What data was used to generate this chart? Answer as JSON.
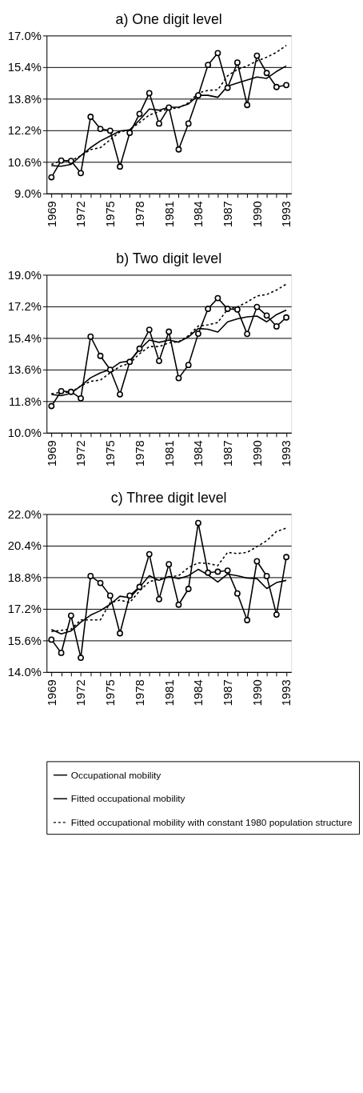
{
  "chart_data": [
    {
      "type": "line",
      "title": "a) One digit level",
      "categories": [
        "1969",
        null,
        null,
        "1972",
        null,
        null,
        "1975",
        null,
        null,
        "1978",
        null,
        null,
        "1981",
        null,
        null,
        "1984",
        null,
        null,
        "1987",
        null,
        null,
        "1990",
        null,
        null,
        "1993"
      ],
      "ylim": [
        9.0,
        17.0
      ],
      "yticks": [
        {
          "value": 9.0,
          "label": "9.0%"
        },
        {
          "value": 10.6,
          "label": "10.6%"
        },
        {
          "value": 12.2,
          "label": "12.2%"
        },
        {
          "value": 13.8,
          "label": "13.8%"
        },
        {
          "value": 15.4,
          "label": "15.4%"
        },
        {
          "value": 17.0,
          "label": "17.0%"
        }
      ],
      "grid": "y",
      "legend": "bottom",
      "series": [
        {
          "name": "Occupational mobility",
          "color": "#000000",
          "marker": "circle",
          "line_style": "solid",
          "values": [
            9.82,
            10.67,
            10.65,
            10.03,
            12.88,
            12.27,
            12.18,
            10.36,
            12.07,
            13.03,
            14.08,
            12.54,
            13.35,
            11.23,
            12.54,
            13.97,
            15.51,
            16.11,
            14.35,
            15.63,
            13.48,
            15.98,
            15.1,
            14.39,
            14.49
          ]
        },
        {
          "name": "Fitted occupational mobility",
          "color": "#000000",
          "marker": "none",
          "line_style": "solid",
          "values": [
            10.41,
            10.38,
            10.47,
            10.91,
            11.32,
            11.66,
            11.91,
            12.16,
            12.22,
            12.72,
            13.28,
            13.22,
            13.37,
            13.37,
            13.53,
            13.97,
            13.97,
            13.87,
            14.43,
            14.59,
            14.75,
            14.9,
            14.83,
            15.18,
            15.46
          ]
        },
        {
          "name": "Fitted occupational mobility with constant 1980 population structure",
          "color": "#000000",
          "marker": "none",
          "line_style": "dotted",
          "values": [
            10.47,
            10.66,
            10.66,
            10.91,
            11.22,
            11.32,
            11.72,
            12.12,
            12.22,
            12.59,
            12.97,
            13.15,
            13.28,
            13.34,
            13.59,
            14.09,
            14.22,
            14.25,
            14.96,
            15.28,
            15.46,
            15.71,
            15.9,
            16.15,
            16.5
          ]
        }
      ]
    },
    {
      "type": "line",
      "title": "b) Two digit level",
      "categories": [
        "1969",
        null,
        null,
        "1972",
        null,
        null,
        "1975",
        null,
        null,
        "1978",
        null,
        null,
        "1981",
        null,
        null,
        "1984",
        null,
        null,
        "1987",
        null,
        null,
        "1990",
        null,
        null,
        "1993"
      ],
      "ylim": [
        10.0,
        19.0
      ],
      "yticks": [
        {
          "value": 10.0,
          "label": "10.0%"
        },
        {
          "value": 11.8,
          "label": "11.8%"
        },
        {
          "value": 13.6,
          "label": "13.6%"
        },
        {
          "value": 15.4,
          "label": "15.4%"
        },
        {
          "value": 17.2,
          "label": "17.2%"
        },
        {
          "value": 19.0,
          "label": "19.0%"
        }
      ],
      "grid": "y",
      "legend": "bottom",
      "series": [
        {
          "name": "Occupational mobility",
          "color": "#000000",
          "marker": "circle",
          "line_style": "solid",
          "values": [
            11.52,
            12.37,
            12.33,
            11.96,
            15.48,
            14.38,
            13.59,
            12.19,
            14.04,
            14.79,
            15.87,
            14.09,
            15.76,
            13.11,
            13.86,
            15.64,
            17.06,
            17.67,
            17.06,
            17.02,
            15.63,
            17.17,
            16.68,
            16.06,
            16.57
          ]
        },
        {
          "name": "Fitted occupational mobility",
          "color": "#000000",
          "marker": "none",
          "line_style": "solid",
          "values": [
            12.18,
            12.11,
            12.25,
            12.66,
            13.13,
            13.41,
            13.61,
            14.0,
            14.09,
            14.74,
            15.28,
            15.15,
            15.28,
            15.16,
            15.46,
            15.94,
            15.9,
            15.74,
            16.32,
            16.49,
            16.6,
            16.65,
            16.32,
            16.73,
            16.99
          ]
        },
        {
          "name": "Fitted occupational mobility with constant 1980 population structure",
          "color": "#000000",
          "marker": "none",
          "line_style": "dotted",
          "values": [
            12.22,
            12.31,
            12.31,
            12.66,
            12.93,
            13.0,
            13.41,
            13.78,
            13.96,
            14.5,
            14.91,
            14.91,
            15.12,
            15.19,
            15.53,
            16.08,
            16.15,
            16.28,
            17.04,
            17.17,
            17.45,
            17.79,
            17.88,
            18.13,
            18.47
          ]
        }
      ]
    },
    {
      "type": "line",
      "title": "c) Three digit level",
      "categories": [
        "1969",
        null,
        null,
        "1972",
        null,
        null,
        "1975",
        null,
        null,
        "1978",
        null,
        null,
        "1981",
        null,
        null,
        "1984",
        null,
        null,
        "1987",
        null,
        null,
        "1990",
        null,
        null,
        "1993"
      ],
      "ylim": [
        14.0,
        22.0
      ],
      "yticks": [
        {
          "value": 14.0,
          "label": "14.0%"
        },
        {
          "value": 15.6,
          "label": "15.6%"
        },
        {
          "value": 17.2,
          "label": "17.2%"
        },
        {
          "value": 18.8,
          "label": "18.8%"
        },
        {
          "value": 20.4,
          "label": "20.4%"
        },
        {
          "value": 22.0,
          "label": "22.0%"
        }
      ],
      "grid": "y",
      "legend": "bottom",
      "series": [
        {
          "name": "Occupational mobility",
          "color": "#000000",
          "marker": "circle",
          "line_style": "solid",
          "values": [
            15.64,
            14.97,
            16.86,
            14.72,
            18.86,
            18.51,
            17.87,
            15.96,
            17.87,
            18.31,
            19.97,
            17.69,
            19.46,
            17.41,
            18.21,
            21.55,
            19.03,
            19.08,
            19.14,
            17.98,
            16.63,
            19.61,
            18.86,
            16.91,
            19.82
          ]
        },
        {
          "name": "Fitted occupational mobility",
          "color": "#000000",
          "marker": "none",
          "line_style": "solid",
          "values": [
            16.15,
            15.93,
            16.08,
            16.52,
            16.88,
            17.11,
            17.43,
            17.84,
            17.76,
            18.29,
            18.88,
            18.64,
            18.84,
            18.73,
            18.88,
            19.2,
            18.92,
            18.56,
            18.96,
            18.88,
            18.76,
            18.73,
            18.23,
            18.53,
            18.64
          ]
        },
        {
          "name": "Fitted occupational mobility with constant 1980 population structure",
          "color": "#000000",
          "marker": "none",
          "line_style": "dotted",
          "values": [
            16.05,
            16.11,
            16.17,
            16.64,
            16.64,
            16.64,
            17.52,
            17.64,
            17.52,
            18.11,
            18.58,
            18.7,
            18.82,
            18.88,
            19.29,
            19.53,
            19.5,
            19.39,
            20.06,
            20.0,
            20.06,
            20.35,
            20.65,
            21.12,
            21.29
          ]
        }
      ]
    }
  ]
}
